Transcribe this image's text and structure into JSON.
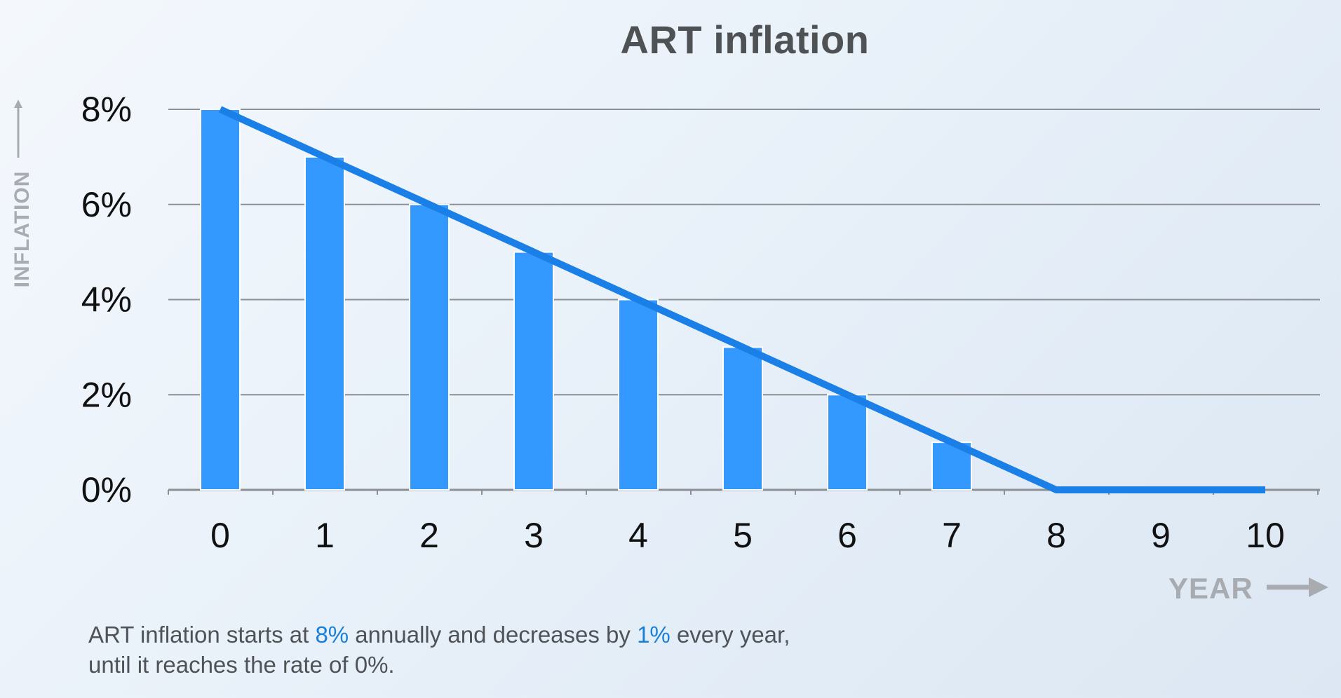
{
  "chart_data": {
    "type": "bar",
    "title": "ART inflation",
    "xlabel": "YEAR",
    "ylabel": "INFLATION",
    "categories": [
      "0",
      "1",
      "2",
      "3",
      "4",
      "5",
      "6",
      "7",
      "8",
      "9",
      "10"
    ],
    "values": [
      8,
      7,
      6,
      5,
      4,
      3,
      2,
      1,
      0,
      0,
      0
    ],
    "line_overlay": {
      "x": [
        0,
        1,
        2,
        3,
        4,
        5,
        6,
        7,
        8,
        9,
        10
      ],
      "y": [
        8,
        7,
        6,
        5,
        4,
        3,
        2,
        1,
        0,
        0,
        0
      ]
    },
    "ylim": [
      0,
      8
    ],
    "yticks": [
      0,
      2,
      4,
      6,
      8
    ],
    "ytick_labels": [
      "0%",
      "2%",
      "4%",
      "6%",
      "8%"
    ],
    "grid": true,
    "colors": {
      "bar": "#3399ff",
      "line": "#1a7fe6",
      "grid": "#8c8f93",
      "axis_title": "#a8acb0"
    }
  },
  "caption": {
    "part1": "ART inflation starts at ",
    "highlight1": "8%",
    "part2": " annually and decreases by ",
    "highlight2": "1%",
    "part3": " every year,",
    "line2": "until it reaches the rate of 0%."
  }
}
